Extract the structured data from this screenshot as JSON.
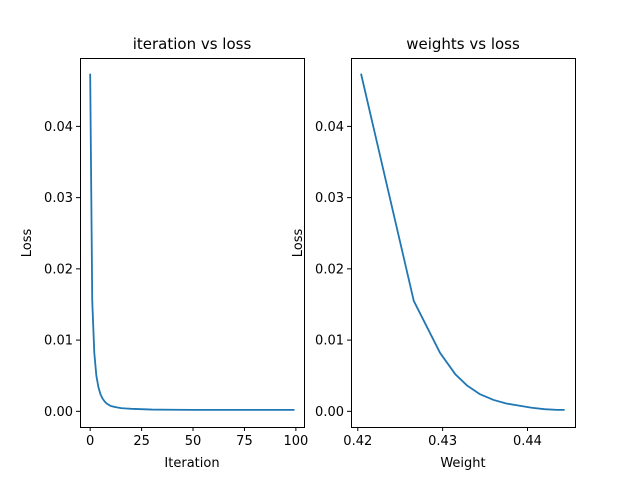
{
  "colors": {
    "series": "#1f77b4",
    "axes": "#000000",
    "background": "#ffffff"
  },
  "chart_data": [
    {
      "type": "line",
      "title": "iteration vs loss",
      "xlabel": "Iteration",
      "ylabel": "Loss",
      "xlim": [
        -4.95,
        103.95
      ],
      "ylim": [
        -0.0022,
        0.0496
      ],
      "xticks": [
        0,
        25,
        50,
        75,
        100
      ],
      "xtick_labels": [
        "0",
        "25",
        "50",
        "75",
        "100"
      ],
      "yticks": [
        0,
        0.01,
        0.02,
        0.03,
        0.04
      ],
      "ytick_labels": [
        "0.00",
        "0.01",
        "0.02",
        "0.03",
        "0.04"
      ],
      "grid": false,
      "legend": "none",
      "series": [
        {
          "x": [
            0,
            1,
            2,
            3,
            4,
            5,
            6,
            7,
            8,
            10,
            12,
            15,
            20,
            25,
            30,
            40,
            50,
            60,
            70,
            80,
            90,
            99
          ],
          "values": [
            0.0473,
            0.0155,
            0.0082,
            0.005,
            0.0034,
            0.0024,
            0.0018,
            0.0014,
            0.0011,
            0.00075,
            0.0006,
            0.00045,
            0.00035,
            0.0003,
            0.00025,
            0.00022,
            0.0002,
            0.0002,
            0.0002,
            0.0002,
            0.0002,
            0.0002
          ]
        }
      ]
    },
    {
      "type": "line",
      "title": "weights vs loss",
      "xlabel": "Weight",
      "ylabel": "Loss",
      "xlim": [
        0.4192,
        0.4456
      ],
      "ylim": [
        -0.0022,
        0.0496
      ],
      "xticks": [
        0.42,
        0.43,
        0.44
      ],
      "xtick_labels": [
        "0.42",
        "0.43",
        "0.44"
      ],
      "yticks": [
        0,
        0.01,
        0.02,
        0.03,
        0.04
      ],
      "ytick_labels": [
        "0.00",
        "0.01",
        "0.02",
        "0.03",
        "0.04"
      ],
      "grid": false,
      "legend": "none",
      "series": [
        {
          "x": [
            0.4204,
            0.4266,
            0.4297,
            0.4315,
            0.4329,
            0.4344,
            0.436,
            0.4375,
            0.439,
            0.4405,
            0.442,
            0.4435,
            0.4443
          ],
          "values": [
            0.0473,
            0.0155,
            0.0082,
            0.0052,
            0.0036,
            0.0024,
            0.0016,
            0.0011,
            0.0008,
            0.0005,
            0.0003,
            0.0002,
            0.0002
          ]
        }
      ]
    }
  ]
}
